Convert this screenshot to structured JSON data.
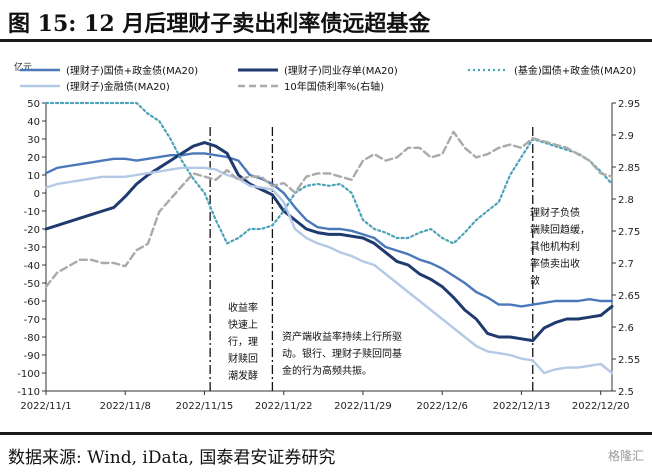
{
  "figure": {
    "title": "图 15:  12 月后理财子卖出利率债远超基金",
    "source": "数据来源: Wind, iData, 国泰君安证券研究",
    "watermark": "格隆汇",
    "unit_label": "亿元"
  },
  "chart_data": {
    "type": "line",
    "title": "",
    "xlabel": "",
    "ylabel": "亿元",
    "y2label": "",
    "ylim": [
      -110,
      50
    ],
    "y2lim": [
      2.5,
      2.95
    ],
    "grid": false,
    "legend_position": "top",
    "x_ticks": [
      "2022/11/1",
      "2022/11/8",
      "2022/11/15",
      "2022/11/22",
      "2022/11/29",
      "2022/12/6",
      "2022/12/13",
      "2022/12/20"
    ],
    "x_tick_index": [
      0,
      7,
      14,
      21,
      28,
      35,
      42,
      49
    ],
    "y_ticks": [
      50,
      40,
      30,
      20,
      10,
      0,
      -10,
      -20,
      -30,
      -40,
      -50,
      -60,
      -70,
      -80,
      -90,
      -100,
      -110
    ],
    "y2_ticks": [
      2.95,
      2.9,
      2.85,
      2.8,
      2.75,
      2.7,
      2.65,
      2.6,
      2.55,
      2.5
    ],
    "y2_tick_labels": [
      "2.95",
      "2.9",
      "2.85",
      "2.8",
      "2.75",
      "2.7",
      "2.65",
      "2.6",
      "2.55",
      "2.5"
    ],
    "vlines": [
      14.5,
      20,
      43
    ],
    "series": [
      {
        "name": "(理财子)国债+政金债(MA20)",
        "color": "#4a78b8",
        "style": "solid",
        "axis": "left",
        "values": [
          11,
          14,
          15,
          16,
          17,
          18,
          19,
          19,
          18,
          19,
          20,
          21,
          21,
          22,
          22,
          21,
          20,
          18,
          10,
          8,
          5,
          0,
          -8,
          -15,
          -19,
          -20,
          -20,
          -21,
          -23,
          -25,
          -30,
          -32,
          -34,
          -37,
          -39,
          -42,
          -46,
          -50,
          -55,
          -58,
          -62,
          -62,
          -63,
          -62,
          -61,
          -60,
          -60,
          -60,
          -59,
          -60,
          -60
        ]
      },
      {
        "name": "(理财子)同业存单(MA20)",
        "color": "#1f3a6e",
        "style": "solid",
        "axis": "left",
        "values": [
          -20,
          -18,
          -16,
          -14,
          -12,
          -10,
          -8,
          -2,
          5,
          10,
          14,
          18,
          22,
          26,
          28,
          26,
          22,
          10,
          5,
          2,
          -1,
          -10,
          -15,
          -20,
          -22,
          -23,
          -23,
          -24,
          -25,
          -28,
          -33,
          -38,
          -40,
          -45,
          -48,
          -52,
          -58,
          -65,
          -70,
          -78,
          -80,
          -80,
          -81,
          -82,
          -75,
          -72,
          -70,
          -70,
          -69,
          -68,
          -63
        ]
      },
      {
        "name": "(基金)国债+政金债(MA20)",
        "color": "#4aa3b8",
        "style": "dotted",
        "axis": "left",
        "values": [
          51,
          52,
          53,
          54,
          55,
          56,
          57,
          55,
          50,
          44,
          40,
          30,
          18,
          8,
          0,
          -15,
          -28,
          -25,
          -20,
          -20,
          -18,
          -10,
          0,
          4,
          5,
          4,
          5,
          0,
          -15,
          -20,
          -22,
          -25,
          -25,
          -22,
          -20,
          -25,
          -28,
          -22,
          -15,
          -10,
          -5,
          10,
          20,
          30,
          28,
          26,
          24,
          22,
          18,
          12,
          5
        ]
      },
      {
        "name": "(理财子)金融债(MA20)",
        "color": "#b4c9e6",
        "style": "solid",
        "axis": "left",
        "values": [
          3,
          5,
          6,
          7,
          8,
          9,
          9,
          9,
          10,
          11,
          12,
          13,
          14,
          14,
          14,
          13,
          10,
          8,
          4,
          3,
          2,
          -5,
          -20,
          -25,
          -28,
          -30,
          -33,
          -35,
          -38,
          -40,
          -45,
          -50,
          -55,
          -60,
          -65,
          -70,
          -75,
          -80,
          -85,
          -88,
          -89,
          -90,
          -92,
          -93,
          -100,
          -98,
          -97,
          -97,
          -96,
          -95,
          -100
        ]
      },
      {
        "name": "10年国债利率%(右轴)",
        "color": "#aaaaaa",
        "style": "dashed",
        "axis": "right",
        "values": [
          2.663,
          2.685,
          2.695,
          2.705,
          2.705,
          2.7,
          2.7,
          2.695,
          2.72,
          2.73,
          2.78,
          2.8,
          2.82,
          2.84,
          2.835,
          2.83,
          2.845,
          2.83,
          2.835,
          2.835,
          2.82,
          2.825,
          2.81,
          2.835,
          2.84,
          2.84,
          2.835,
          2.83,
          2.86,
          2.87,
          2.86,
          2.865,
          2.88,
          2.88,
          2.865,
          2.87,
          2.905,
          2.88,
          2.865,
          2.87,
          2.88,
          2.885,
          2.88,
          2.895,
          2.89,
          2.885,
          2.88,
          2.87,
          2.86,
          2.84,
          2.835
        ]
      }
    ],
    "annotations": [
      {
        "text": "收益率\n快速上\n行，理\n财赎回\n潮发酵"
      },
      {
        "text": "资产端收益率持续上行所驱\n动。银行、理财子赎回同基\n金的行为高频共振。"
      },
      {
        "text": "理财子负债\n端赎回趋缓，\n其他机构利\n率债卖出收\n敛"
      }
    ]
  }
}
